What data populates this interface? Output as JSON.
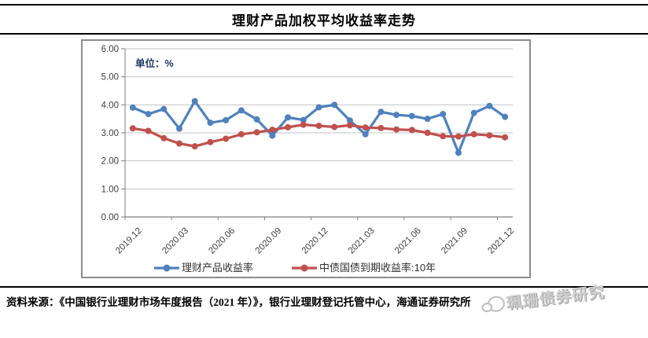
{
  "title": "理财产品加权平均收益率走势",
  "chart_data": {
    "type": "line",
    "title": "理财产品加权平均收益率走势",
    "unit_label": "单位：%",
    "xlabel": "",
    "ylabel": "",
    "ylim": [
      0,
      6
    ],
    "y_tick_labels": [
      "0.00",
      "1.00",
      "2.00",
      "3.00",
      "4.00",
      "5.00",
      "6.00"
    ],
    "grid": true,
    "legend_position": "bottom",
    "x": [
      "2019.12",
      "2020.01",
      "2020.02",
      "2020.03",
      "2020.04",
      "2020.05",
      "2020.06",
      "2020.07",
      "2020.08",
      "2020.09",
      "2020.10",
      "2020.11",
      "2020.12",
      "2021.01",
      "2021.02",
      "2021.03",
      "2021.04",
      "2021.05",
      "2021.06",
      "2021.07",
      "2021.08",
      "2021.09",
      "2021.10",
      "2021.11",
      "2021.12"
    ],
    "x_tick_labels": [
      "2019.12",
      "2020.03",
      "2020.06",
      "2020.09",
      "2020.12",
      "2021.03",
      "2021.06",
      "2021.09",
      "2021.12"
    ],
    "series": [
      {
        "name": "理财产品收益率",
        "color": "#4F81BD",
        "values": [
          3.9,
          3.67,
          3.85,
          3.15,
          4.13,
          3.36,
          3.45,
          3.8,
          3.48,
          2.9,
          3.55,
          3.46,
          3.91,
          4.0,
          3.44,
          2.95,
          3.75,
          3.64,
          3.6,
          3.5,
          3.67,
          2.29,
          3.71,
          3.96,
          3.57
        ]
      },
      {
        "name": "中债国债到期收益率:10年",
        "color": "#C0504D",
        "values": [
          3.16,
          3.07,
          2.81,
          2.62,
          2.52,
          2.67,
          2.79,
          2.95,
          3.02,
          3.11,
          3.2,
          3.29,
          3.25,
          3.21,
          3.27,
          3.19,
          3.17,
          3.12,
          3.1,
          3.0,
          2.88,
          2.87,
          2.95,
          2.91,
          2.84
        ]
      }
    ],
    "colors": {
      "gridline": "#c3c3c3",
      "axis_line": "#7f7f7f",
      "tick_text": "#3f3f3f",
      "unit_text": "#1F3864"
    }
  },
  "footer": {
    "source_text": "资料来源：《中国银行业理财市场年度报告（2021 年）》，银行业理财登记托管中心，海通证券研究所"
  },
  "watermark": {
    "text": "珮珊债券研究"
  }
}
